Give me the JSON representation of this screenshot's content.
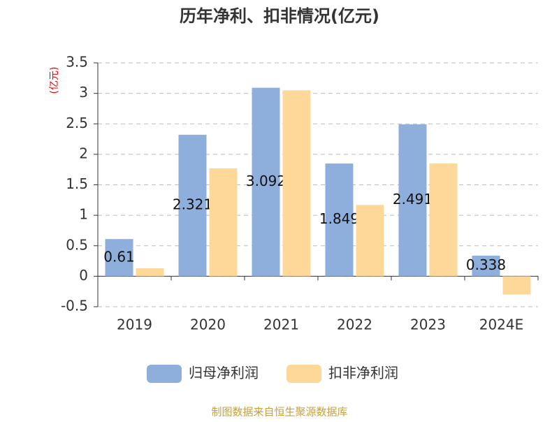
{
  "chart_data": {
    "type": "bar",
    "title": "历年净利、扣非情况(亿元)",
    "y_label": "(亿元)",
    "categories": [
      "2019",
      "2020",
      "2021",
      "2022",
      "2023",
      "2024E"
    ],
    "series": [
      {
        "name": "归母净利润",
        "color": "#8eaedb",
        "values": [
          0.61,
          2.321,
          3.092,
          1.849,
          2.491,
          0.338
        ],
        "show_labels": true
      },
      {
        "name": "扣非净利润",
        "color": "#fdd899",
        "values": [
          0.13,
          1.77,
          3.05,
          1.17,
          1.85,
          -0.3
        ],
        "show_labels": false
      }
    ],
    "ylim": [
      -0.5,
      3.5
    ],
    "yticks": [
      -0.5,
      0,
      0.5,
      1,
      1.5,
      2,
      2.5,
      3,
      3.5
    ],
    "grid": true,
    "legend": "bottom",
    "source": "制图数据来自恒生聚源数据库"
  }
}
